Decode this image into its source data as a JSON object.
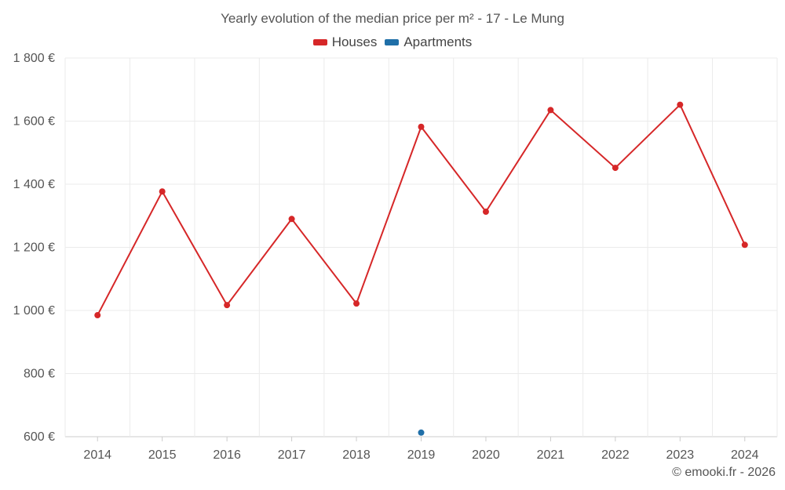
{
  "chart_data": {
    "type": "line",
    "title": "Yearly evolution of the median price per m² - 17 - Le Mung",
    "x": [
      "2014",
      "2015",
      "2016",
      "2017",
      "2018",
      "2019",
      "2020",
      "2021",
      "2022",
      "2023",
      "2024"
    ],
    "series": [
      {
        "name": "Houses",
        "color": "#d62728",
        "values": [
          985,
          1377,
          1017,
          1290,
          1022,
          1582,
          1313,
          1635,
          1452,
          1652,
          1208
        ]
      },
      {
        "name": "Apartments",
        "color": "#1f6fa8",
        "values": [
          null,
          null,
          null,
          null,
          null,
          613,
          null,
          null,
          null,
          null,
          null
        ]
      }
    ],
    "ylim": [
      600,
      1800
    ],
    "yticks": [
      600,
      800,
      1000,
      1200,
      1400,
      1600,
      1800
    ],
    "ytick_labels": [
      "600 €",
      "800 €",
      "1 000 €",
      "1 200 €",
      "1 400 €",
      "1 600 €",
      "1 800 €"
    ],
    "grid": true,
    "legend": "top-center"
  },
  "credit": "© emooki.fr - 2026"
}
